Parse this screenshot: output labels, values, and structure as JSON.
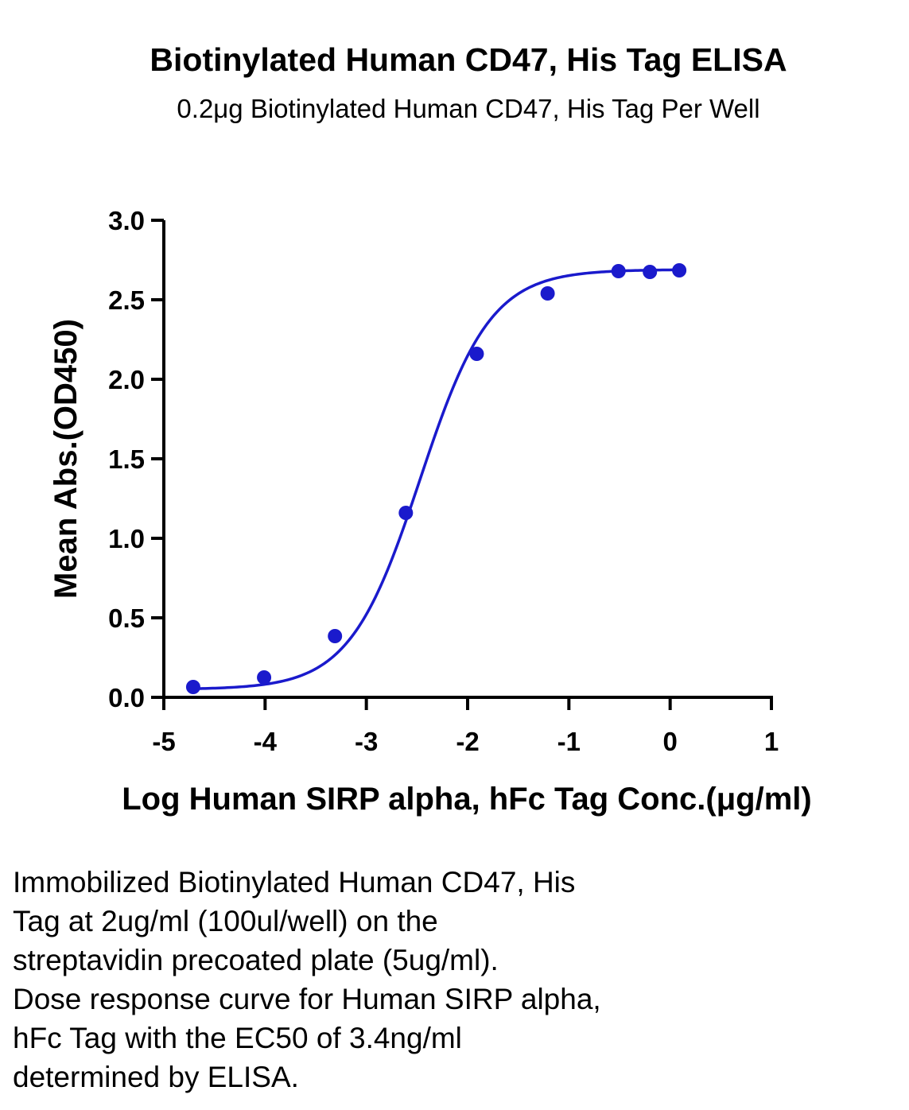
{
  "chart_data": {
    "type": "scatter",
    "title": "Biotinylated Human CD47, His Tag ELISA",
    "subtitle": "0.2μg Biotinylated Human CD47, His Tag Per Well",
    "xlabel": "Log Human SIRP alpha, hFc Tag Conc.(μg/ml)",
    "ylabel": "Mean Abs.(OD450)",
    "xlim": [
      -5,
      1
    ],
    "ylim": [
      0,
      3
    ],
    "x_ticks": [
      -5,
      -4,
      -3,
      -2,
      -1,
      0,
      1
    ],
    "x_tick_labels": [
      "-5",
      "-4",
      "-3",
      "-2",
      "-1",
      "0",
      "1"
    ],
    "y_ticks": [
      0,
      0.5,
      1,
      1.5,
      2,
      2.5,
      3
    ],
    "y_tick_labels": [
      "0.0",
      "0.5",
      "1.0",
      "1.5",
      "2.0",
      "2.5",
      "3.0"
    ],
    "grid": false,
    "legend": "none",
    "series": [
      {
        "color": "#1a1acc",
        "x": [
          -4.71,
          -4.01,
          -3.31,
          -2.61,
          -1.91,
          -1.21,
          -0.51,
          -0.2,
          0.09
        ],
        "y": [
          0.065,
          0.125,
          0.385,
          1.16,
          2.16,
          2.54,
          2.68,
          2.675,
          2.685
        ]
      }
    ],
    "fit_curve": {
      "model": "4PL",
      "bottom": 0.05,
      "top": 2.69,
      "log_ec50": -2.47,
      "hill_slope": 1.25
    }
  },
  "caption": "Immobilized Biotinylated Human CD47, His\nTag at 2ug/ml (100ul/well) on the\nstreptavidin precoated plate (5ug/ml).\nDose response curve for Human SIRP alpha,\nhFc Tag with the EC50 of 3.4ng/ml\ndetermined by ELISA."
}
